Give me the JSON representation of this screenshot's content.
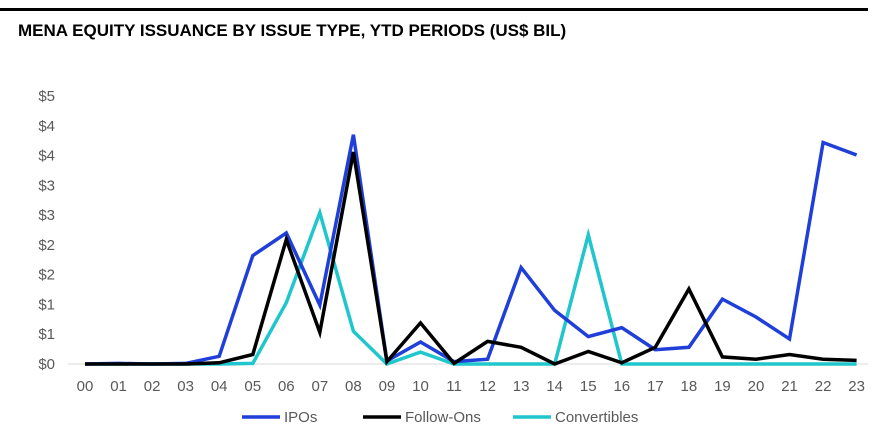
{
  "title": "MENA EQUITY ISSUANCE BY ISSUE TYPE, YTD PERIODS (US$ BIL)",
  "chart_data": {
    "type": "line",
    "title": "MENA EQUITY ISSUANCE BY ISSUE TYPE, YTD PERIODS (US$ BIL)",
    "xlabel": "",
    "ylabel": "",
    "categories": [
      "00",
      "01",
      "02",
      "03",
      "04",
      "05",
      "06",
      "07",
      "08",
      "09",
      "10",
      "11",
      "12",
      "13",
      "14",
      "15",
      "16",
      "17",
      "18",
      "19",
      "20",
      "21",
      "22",
      "23"
    ],
    "ylim": [
      0,
      4.5
    ],
    "y_ticks": [
      0,
      0.5,
      1,
      1.5,
      2,
      2.5,
      3,
      3.5,
      4,
      4.5
    ],
    "y_tick_labels": [
      "$0",
      "$1",
      "$1",
      "$2",
      "$2",
      "$3",
      "$3",
      "$4",
      "$4",
      "$5"
    ],
    "grid": false,
    "legend_position": "bottom",
    "series": [
      {
        "name": "IPOs",
        "color": "#1f3fd8",
        "values": [
          0.0,
          0.01,
          0.0,
          0.01,
          0.13,
          1.82,
          2.2,
          0.99,
          3.85,
          0.05,
          0.37,
          0.04,
          0.08,
          1.62,
          0.9,
          0.46,
          0.61,
          0.24,
          0.28,
          1.09,
          0.79,
          0.42,
          3.72,
          3.51
        ]
      },
      {
        "name": "Follow-Ons",
        "color": "#000000",
        "values": [
          0.0,
          0.0,
          0.0,
          0.0,
          0.02,
          0.16,
          2.09,
          0.53,
          3.56,
          0.04,
          0.69,
          0.01,
          0.38,
          0.28,
          0.0,
          0.21,
          0.02,
          0.28,
          1.26,
          0.12,
          0.08,
          0.16,
          0.08,
          0.06
        ]
      },
      {
        "name": "Convertibles",
        "color": "#1fc6cc",
        "values": [
          0.0,
          0.0,
          0.0,
          0.0,
          0.0,
          0.01,
          1.03,
          2.54,
          0.55,
          0.0,
          0.2,
          0.0,
          0.0,
          0.0,
          0.0,
          2.17,
          0.0,
          0.0,
          0.0,
          0.0,
          0.0,
          0.0,
          0.0,
          0.0
        ]
      }
    ]
  }
}
